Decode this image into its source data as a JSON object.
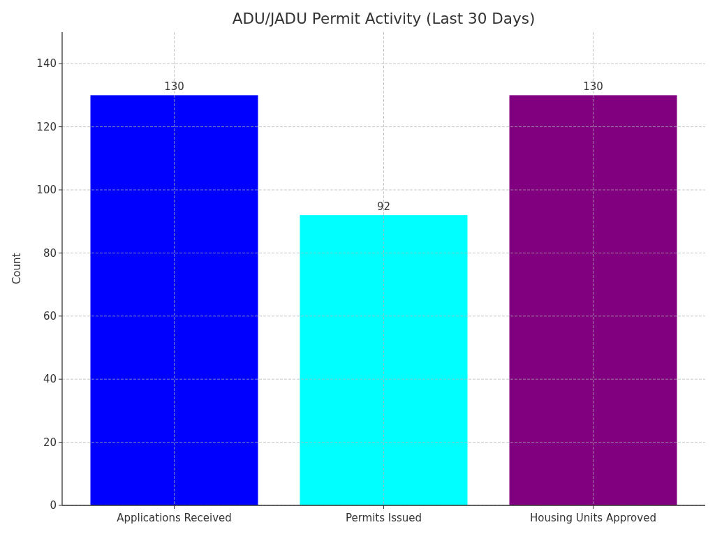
{
  "chart_data": {
    "type": "bar",
    "title": "ADU/JADU Permit Activity (Last 30 Days)",
    "ylabel": "Count",
    "categories": [
      "Applications Received",
      "Permits Issued",
      "Housing Units Approved"
    ],
    "values": [
      130,
      92,
      130
    ],
    "colors": [
      "#0000ff",
      "#00ffff",
      "#800080"
    ],
    "ylim": [
      0,
      150
    ],
    "yticks": [
      0,
      20,
      40,
      60,
      80,
      100,
      120,
      140
    ],
    "grid": true,
    "data_labels": true
  }
}
